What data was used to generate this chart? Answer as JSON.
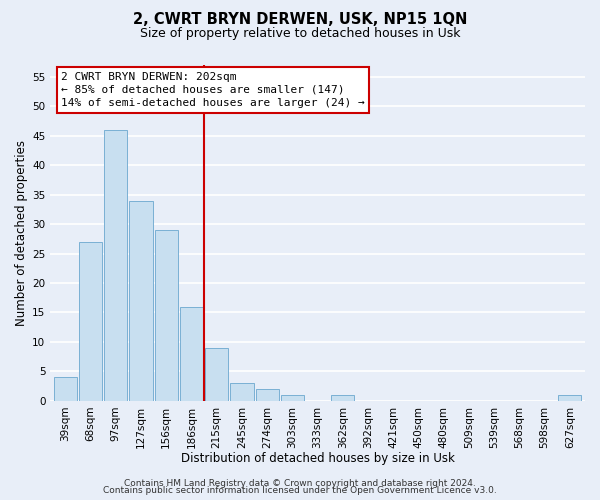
{
  "title_line1": "2, CWRT BRYN DERWEN, USK, NP15 1QN",
  "title_line2": "Size of property relative to detached houses in Usk",
  "xlabel": "Distribution of detached houses by size in Usk",
  "ylabel": "Number of detached properties",
  "bar_labels": [
    "39sqm",
    "68sqm",
    "97sqm",
    "127sqm",
    "156sqm",
    "186sqm",
    "215sqm",
    "245sqm",
    "274sqm",
    "303sqm",
    "333sqm",
    "362sqm",
    "392sqm",
    "421sqm",
    "450sqm",
    "480sqm",
    "509sqm",
    "539sqm",
    "568sqm",
    "598sqm",
    "627sqm"
  ],
  "bar_values": [
    4,
    27,
    46,
    34,
    29,
    16,
    9,
    3,
    2,
    1,
    0,
    1,
    0,
    0,
    0,
    0,
    0,
    0,
    0,
    0,
    1
  ],
  "bar_color": "#c8dff0",
  "bar_edge_color": "#7ab0d4",
  "ref_line_index": 6,
  "ref_line_color": "#cc0000",
  "ylim": [
    0,
    57
  ],
  "yticks": [
    0,
    5,
    10,
    15,
    20,
    25,
    30,
    35,
    40,
    45,
    50,
    55
  ],
  "annotation_title": "2 CWRT BRYN DERWEN: 202sqm",
  "annotation_line1": "← 85% of detached houses are smaller (147)",
  "annotation_line2": "14% of semi-detached houses are larger (24) →",
  "annotation_box_color": "#ffffff",
  "annotation_box_edge": "#cc0000",
  "footer_line1": "Contains HM Land Registry data © Crown copyright and database right 2024.",
  "footer_line2": "Contains public sector information licensed under the Open Government Licence v3.0.",
  "bg_color": "#e8eef8",
  "plot_bg_color": "#e8eef8",
  "grid_color": "#ffffff",
  "title_fontsize": 10.5,
  "subtitle_fontsize": 9,
  "axis_label_fontsize": 8.5,
  "tick_fontsize": 7.5,
  "annotation_fontsize": 8,
  "footer_fontsize": 6.5
}
